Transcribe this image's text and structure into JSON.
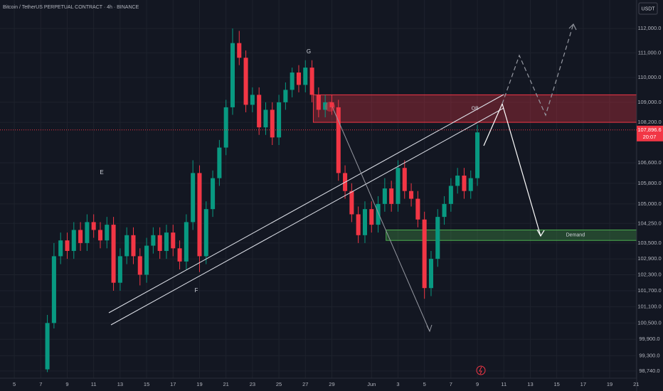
{
  "chart_data": {
    "type": "candlestick",
    "title": "Bitcoin / TetherUS PERPETUAL CONTRACT · 4h · BINANCE",
    "currency": "USDT",
    "log_scale": true,
    "colors": {
      "up": "#089981",
      "down": "#f23645"
    },
    "x": [
      7.5,
      8,
      8.5,
      9,
      9.5,
      10,
      10.5,
      11,
      11.5,
      12,
      12.5,
      13,
      13.5,
      14,
      14.5,
      15,
      15.5,
      16,
      16.5,
      17,
      17.5,
      18,
      18.5,
      19,
      19.5,
      20,
      20.5,
      21,
      21.5,
      22,
      22.5,
      23,
      23.5,
      24,
      24.5,
      25,
      25.5,
      26,
      26.5,
      27,
      27.5,
      28,
      28.5,
      29,
      29.5,
      30,
      30.5,
      31,
      31.5,
      32,
      32.5,
      33,
      33.5,
      34,
      34.5,
      35,
      35.5,
      36,
      36.5,
      37,
      37.5,
      38,
      38.5,
      39,
      39.5,
      40
    ],
    "open": [
      98800,
      100500,
      103000,
      103600,
      103200,
      104000,
      103500,
      104300,
      104000,
      103600,
      104200,
      102000,
      103000,
      103800,
      103000,
      102300,
      103400,
      103800,
      103200,
      103900,
      103300,
      102800,
      104300,
      106200,
      103000,
      104800,
      106000,
      107200,
      108800,
      111400,
      110800,
      108900,
      109300,
      108000,
      108700,
      107600,
      109000,
      109500,
      110200,
      109700,
      110400,
      109300,
      108700,
      109000,
      108800,
      106200,
      105500,
      104600,
      103800,
      104800,
      104200,
      105000,
      105600,
      105000,
      106400,
      105500,
      105200,
      104400,
      101800,
      102900,
      104500,
      105000,
      105700,
      106100,
      105500,
      106000
    ],
    "high": [
      100800,
      103500,
      103900,
      103900,
      104300,
      104300,
      104600,
      104600,
      104300,
      104500,
      104500,
      103300,
      104100,
      104100,
      103300,
      103700,
      104100,
      104100,
      104200,
      104200,
      103600,
      104600,
      106700,
      106500,
      105100,
      106300,
      107500,
      109100,
      112000,
      111900,
      111100,
      109600,
      109600,
      109000,
      109000,
      109300,
      109800,
      110400,
      110500,
      110700,
      110700,
      109600,
      109300,
      109300,
      109100,
      106500,
      105800,
      104900,
      105100,
      105100,
      105300,
      106000,
      105900,
      106700,
      106700,
      105800,
      105500,
      104700,
      103200,
      104800,
      105300,
      106000,
      106400,
      106400,
      106300,
      108100
    ],
    "low": [
      98700,
      100300,
      102700,
      102900,
      102900,
      103200,
      103200,
      103700,
      103300,
      103300,
      101700,
      101700,
      102700,
      102700,
      101900,
      102000,
      103100,
      102900,
      102900,
      103000,
      102500,
      102500,
      104000,
      102400,
      102700,
      104500,
      105700,
      106900,
      108500,
      110500,
      108600,
      108600,
      107700,
      107700,
      107300,
      107300,
      108700,
      109200,
      109400,
      109400,
      109000,
      108400,
      108400,
      108500,
      105900,
      105200,
      104300,
      103500,
      103500,
      103900,
      103900,
      104700,
      104700,
      104700,
      105200,
      104900,
      104100,
      101400,
      101500,
      102600,
      104200,
      104700,
      105400,
      105200,
      105200,
      105700
    ],
    "close": [
      100500,
      103000,
      103600,
      103200,
      104000,
      103500,
      104300,
      104000,
      103600,
      104200,
      102000,
      103000,
      103800,
      103000,
      102300,
      103400,
      103800,
      103200,
      103900,
      103300,
      102800,
      104300,
      106200,
      103000,
      104800,
      106000,
      107200,
      108800,
      111400,
      110800,
      108900,
      109300,
      108000,
      108700,
      107600,
      109000,
      109500,
      110200,
      109700,
      110400,
      109300,
      108700,
      109000,
      108800,
      106200,
      105500,
      104600,
      103800,
      104800,
      104200,
      105000,
      105600,
      105000,
      106400,
      105500,
      105200,
      104400,
      101800,
      102900,
      104500,
      105000,
      105700,
      106100,
      105500,
      106000,
      107800
    ],
    "xlim": [
      3.92,
      52.04
    ],
    "ylim": [
      98480,
      113180
    ],
    "xticks": [
      5,
      7,
      9,
      11,
      13,
      15,
      17,
      19,
      21,
      23,
      25,
      27,
      29,
      {
        "value": 32,
        "label": "Jun"
      },
      {
        "value": 34,
        "label": "3"
      },
      {
        "value": 36,
        "label": "5"
      },
      {
        "value": 38,
        "label": "7"
      },
      {
        "value": 40,
        "label": "9"
      },
      {
        "value": 42,
        "label": "11"
      },
      {
        "value": 44,
        "label": "13"
      },
      {
        "value": 46,
        "label": "15"
      },
      {
        "value": 48,
        "label": "17"
      },
      {
        "value": 50,
        "label": "19"
      },
      {
        "value": 52,
        "label": "21"
      }
    ],
    "yticks": [
      {
        "value": 112000,
        "label": "112,000.0"
      },
      {
        "value": 111000,
        "label": "111,000.0"
      },
      {
        "value": 110000,
        "label": "110,000.0"
      },
      {
        "value": 109000,
        "label": "109,000.0"
      },
      {
        "value": 108200,
        "label": "108,200.0"
      },
      {
        "value": 106600,
        "label": "106,600.0"
      },
      {
        "value": 105800,
        "label": "105,800.0"
      },
      {
        "value": 105000,
        "label": "105,000.0"
      },
      {
        "value": 104250,
        "label": "104,250.0"
      },
      {
        "value": 103500,
        "label": "103,500.0"
      },
      {
        "value": 102900,
        "label": "102,900.0"
      },
      {
        "value": 102300,
        "label": "102,300.0"
      },
      {
        "value": 101700,
        "label": "101,700.0"
      },
      {
        "value": 101100,
        "label": "101,100.0"
      },
      {
        "value": 100500,
        "label": "100,500.0"
      },
      {
        "value": 99900,
        "label": "99,900.0"
      },
      {
        "value": 99300,
        "label": "99,300.0"
      },
      {
        "value": 98740,
        "label": "98,740.0"
      }
    ],
    "grid": true,
    "last_price": {
      "value": 107896.6,
      "label": "107,896.6"
    },
    "countdown": "20:07",
    "zones": [
      {
        "label": "OB",
        "from": 27.6,
        "low": 108200,
        "high": 109300,
        "color": "#f23645"
      },
      {
        "label": "Demand",
        "from": 33.1,
        "low": 103600,
        "high": 104000,
        "color": "#4caf50"
      }
    ],
    "annotations": [
      "E",
      "F",
      "G"
    ]
  }
}
